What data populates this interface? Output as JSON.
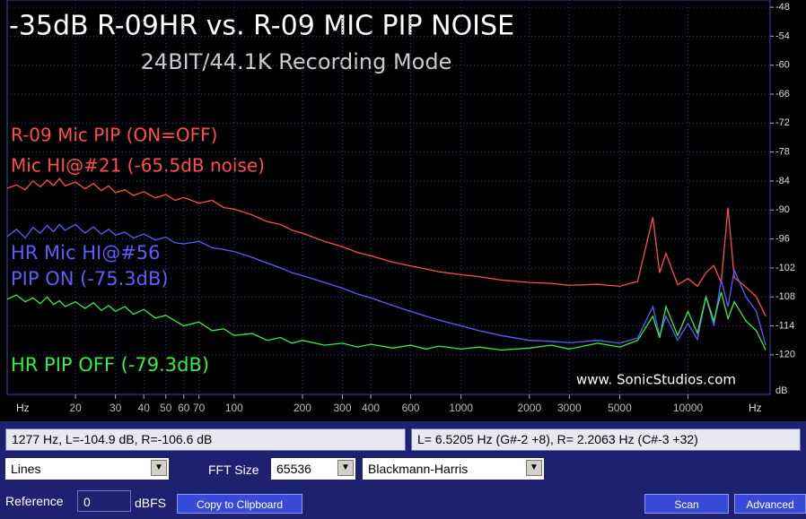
{
  "chart_data": {
    "type": "line",
    "log_x": true,
    "grid": true,
    "title": "-35dB R-09HR vs. R-09 MIC PIP NOISE",
    "subtitle": "24BIT/44.1K Recording Mode",
    "annotations": [
      {
        "text": "R-09 Mic PIP (ON=OFF)",
        "color": "#ff4d4d"
      },
      {
        "text": "Mic HI@#21 (-65.5dB noise)",
        "color": "#ff4d4d"
      },
      {
        "text": "HR Mic HI@#56",
        "color": "#5c5cff"
      },
      {
        "text": "PIP ON (-75.3dB)",
        "color": "#5c5cff"
      },
      {
        "text": "HR PIP OFF (-79.3dB)",
        "color": "#33ee44"
      },
      {
        "text": "www. SonicStudios.com",
        "color": "#ffffff"
      }
    ],
    "x_unit_left": "Hz",
    "x_unit_right": "Hz",
    "y_unit": "dB",
    "xlim": [
      10,
      23000
    ],
    "xticks": [
      20,
      30,
      40,
      50,
      60,
      70,
      100,
      200,
      300,
      400,
      600,
      1000,
      2000,
      3000,
      5000,
      10000
    ],
    "ylim": [
      -128.2,
      -46.5
    ],
    "yticks": [
      -48,
      -54,
      -60,
      -66,
      -72,
      -78,
      -84,
      -90,
      -96,
      -102,
      -108,
      -114,
      -120
    ],
    "x": [
      10,
      11,
      12,
      13,
      14,
      15,
      16,
      17,
      18,
      20,
      22,
      24,
      26,
      28,
      30,
      33,
      36,
      40,
      45,
      50,
      55,
      60,
      70,
      80,
      90,
      100,
      120,
      140,
      160,
      180,
      200,
      250,
      300,
      350,
      400,
      500,
      600,
      700,
      800,
      1000,
      1200,
      1500,
      2000,
      2500,
      3000,
      4000,
      5000,
      6000,
      7000,
      7500,
      8000,
      9000,
      10000,
      11000,
      12000,
      13000,
      14000,
      15000,
      16000,
      18000,
      20000,
      22000
    ],
    "series": [
      {
        "name": "R-09 Mic PIP",
        "color": "#ff4d4d",
        "values": [
          -85.5,
          -84.8,
          -85.8,
          -84,
          -85.2,
          -83.8,
          -84.9,
          -83.5,
          -85,
          -84.2,
          -85.6,
          -84.5,
          -86,
          -85,
          -86.4,
          -85.8,
          -87,
          -86.2,
          -87.5,
          -86.8,
          -88,
          -87.4,
          -88.6,
          -88,
          -89.5,
          -89.8,
          -91,
          -92.4,
          -93,
          -94.2,
          -94.8,
          -96.5,
          -97.6,
          -98.8,
          -99.5,
          -100.8,
          -101.6,
          -102.2,
          -102.8,
          -103.4,
          -103.8,
          -104.5,
          -105,
          -105.2,
          -105.6,
          -105.4,
          -105.8,
          -104.8,
          -91.5,
          -103,
          -99,
          -105.5,
          -104.2,
          -105.8,
          -103,
          -101.5,
          -105,
          -89.5,
          -104,
          -106,
          -108,
          -112
        ]
      },
      {
        "name": "HR PIP ON",
        "color": "#5c5cff",
        "values": [
          -95.5,
          -94,
          -95.8,
          -93.6,
          -94.8,
          -93.2,
          -94.5,
          -93,
          -94.2,
          -93,
          -94.8,
          -93.5,
          -95,
          -94,
          -95.2,
          -94.6,
          -95.8,
          -95,
          -96.2,
          -95.6,
          -96.8,
          -97,
          -96.5,
          -97.8,
          -98.2,
          -98.6,
          -99.8,
          -101,
          -102,
          -103,
          -103.6,
          -105,
          -106.2,
          -107.4,
          -108.2,
          -109.8,
          -111,
          -112,
          -112.8,
          -114,
          -115,
          -116,
          -117,
          -117.2,
          -117.5,
          -117,
          -117.6,
          -116.5,
          -110,
          -116,
          -112,
          -117,
          -113.5,
          -116.8,
          -108,
          -114,
          -104.5,
          -110,
          -102.5,
          -108,
          -111,
          -118
        ]
      },
      {
        "name": "HR PIP OFF",
        "color": "#33ee44",
        "values": [
          -108.5,
          -107.6,
          -109,
          -108.2,
          -109.4,
          -108,
          -109.6,
          -108.8,
          -110,
          -109,
          -110.4,
          -109.2,
          -110.8,
          -109.8,
          -111,
          -110,
          -111.6,
          -110.6,
          -112.4,
          -111.8,
          -113,
          -114,
          -113.2,
          -115,
          -114.6,
          -116,
          -115.6,
          -117,
          -116.4,
          -117.6,
          -117,
          -118,
          -117.6,
          -118.4,
          -117.8,
          -118.6,
          -118,
          -118.8,
          -118.2,
          -118.8,
          -118.4,
          -119,
          -118.6,
          -118,
          -118.8,
          -117.6,
          -118.4,
          -117,
          -112,
          -116.5,
          -110,
          -116,
          -111,
          -115.5,
          -108,
          -113,
          -107,
          -112.5,
          -109,
          -113,
          -115,
          -119
        ]
      }
    ]
  },
  "ui": {
    "status_left": "1277 Hz, L=-104.9 dB, R=-106.6 dB",
    "status_right": "L= 6.5205 Hz (G#-2 +8), R= 2.2063 Hz (C#-3 +32)",
    "display_mode": "Lines",
    "fft_size_label": "FFT Size",
    "fft_size": "65536",
    "window": "Blackmann-Harris",
    "reference_label": "Reference",
    "reference_value": "0",
    "reference_unit": "dBFS",
    "copy_button": "Copy to Clipboard",
    "scan_button": "Scan",
    "advanced_button": "Advanced"
  }
}
